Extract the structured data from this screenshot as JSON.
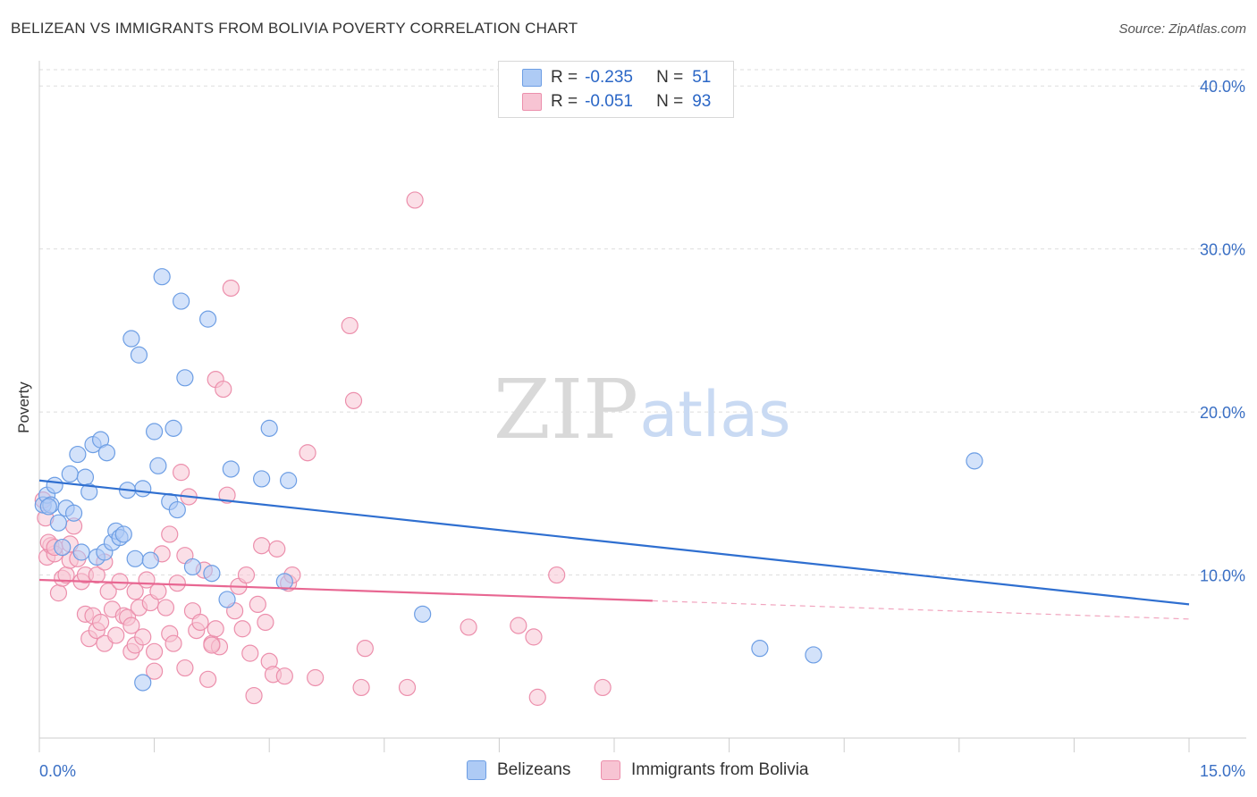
{
  "title": "BELIZEAN VS IMMIGRANTS FROM BOLIVIA POVERTY CORRELATION CHART",
  "source": "Source: ZipAtlas.com",
  "watermark": {
    "zip": "ZIP",
    "atlas": "atlas"
  },
  "legend": {
    "r_label": "R =",
    "n_label": "N =",
    "series": [
      {
        "r": "-0.235",
        "n": "51"
      },
      {
        "r": "-0.051",
        "n": "93"
      }
    ]
  },
  "colors": {
    "blue_fill": "#aecbf5",
    "blue_stroke": "#6d9ee4",
    "blue_line": "#2f6fd0",
    "pink_fill": "#f7c4d3",
    "pink_stroke": "#ec8fac",
    "pink_line": "#e86792",
    "axis_text": "#3a6fc4"
  },
  "chart_data": {
    "type": "scatter",
    "title": "BELIZEAN VS IMMIGRANTS FROM BOLIVIA POVERTY CORRELATION CHART",
    "xlabel": "",
    "ylabel": "Poverty",
    "xlim": [
      0,
      15
    ],
    "ylim": [
      0,
      41
    ],
    "x_tick_labels": [
      "0.0%",
      "15.0%"
    ],
    "y_ticks": [
      10,
      20,
      30,
      40
    ],
    "y_tick_labels": [
      "10.0%",
      "20.0%",
      "30.0%",
      "40.0%"
    ],
    "series": [
      {
        "name": "Belizeans",
        "color": "blue",
        "r": -0.235,
        "n": 51,
        "trend": {
          "x": [
            0,
            15
          ],
          "y": [
            15.8,
            8.2
          ],
          "solid_until": 15
        },
        "points": [
          [
            0.05,
            14.3
          ],
          [
            0.1,
            14.9
          ],
          [
            0.15,
            14.3
          ],
          [
            0.2,
            15.5
          ],
          [
            0.25,
            13.2
          ],
          [
            0.3,
            11.7
          ],
          [
            0.35,
            14.1
          ],
          [
            0.4,
            16.2
          ],
          [
            0.45,
            13.8
          ],
          [
            0.5,
            17.4
          ],
          [
            0.55,
            11.4
          ],
          [
            0.6,
            16.0
          ],
          [
            0.65,
            15.1
          ],
          [
            0.7,
            18.0
          ],
          [
            0.75,
            11.1
          ],
          [
            0.8,
            18.3
          ],
          [
            0.85,
            11.4
          ],
          [
            0.88,
            17.5
          ],
          [
            0.95,
            12.0
          ],
          [
            1.0,
            12.7
          ],
          [
            1.05,
            12.3
          ],
          [
            1.1,
            12.5
          ],
          [
            1.2,
            24.5
          ],
          [
            1.25,
            11.0
          ],
          [
            1.3,
            23.5
          ],
          [
            1.35,
            15.3
          ],
          [
            1.45,
            10.9
          ],
          [
            1.5,
            18.8
          ],
          [
            1.55,
            16.7
          ],
          [
            1.6,
            28.3
          ],
          [
            1.7,
            14.5
          ],
          [
            1.75,
            19.0
          ],
          [
            1.8,
            14.0
          ],
          [
            1.85,
            26.8
          ],
          [
            1.9,
            22.1
          ],
          [
            2.0,
            10.5
          ],
          [
            2.2,
            25.7
          ],
          [
            2.25,
            10.1
          ],
          [
            2.45,
            8.5
          ],
          [
            2.5,
            16.5
          ],
          [
            2.9,
            15.9
          ],
          [
            3.0,
            19.0
          ],
          [
            3.2,
            9.6
          ],
          [
            3.25,
            15.8
          ],
          [
            1.35,
            3.4
          ],
          [
            5.0,
            7.6
          ],
          [
            12.2,
            17.0
          ],
          [
            9.4,
            5.5
          ],
          [
            10.1,
            5.1
          ],
          [
            0.12,
            14.2
          ],
          [
            1.15,
            15.2
          ]
        ]
      },
      {
        "name": "Immigrants from Bolivia",
        "color": "pink",
        "r": -0.051,
        "n": 93,
        "trend": {
          "x": [
            0,
            15
          ],
          "y": [
            9.7,
            7.3
          ],
          "solid_until": 8.0
        },
        "points": [
          [
            0.05,
            14.6
          ],
          [
            0.08,
            13.5
          ],
          [
            0.1,
            11.1
          ],
          [
            0.15,
            11.8
          ],
          [
            0.2,
            11.3
          ],
          [
            0.25,
            8.9
          ],
          [
            0.3,
            9.8
          ],
          [
            0.35,
            10.0
          ],
          [
            0.4,
            10.9
          ],
          [
            0.45,
            13.0
          ],
          [
            0.5,
            11.0
          ],
          [
            0.55,
            9.6
          ],
          [
            0.6,
            10.0
          ],
          [
            0.6,
            7.6
          ],
          [
            0.65,
            6.1
          ],
          [
            0.7,
            7.5
          ],
          [
            0.75,
            10.0
          ],
          [
            0.75,
            6.6
          ],
          [
            0.8,
            7.1
          ],
          [
            0.85,
            10.8
          ],
          [
            0.85,
            5.8
          ],
          [
            0.9,
            9.0
          ],
          [
            0.95,
            7.9
          ],
          [
            1.0,
            6.3
          ],
          [
            1.05,
            9.6
          ],
          [
            1.1,
            7.5
          ],
          [
            1.15,
            7.4
          ],
          [
            1.2,
            6.9
          ],
          [
            1.2,
            5.3
          ],
          [
            1.25,
            5.7
          ],
          [
            1.3,
            8.0
          ],
          [
            1.35,
            6.2
          ],
          [
            1.4,
            9.7
          ],
          [
            1.45,
            8.3
          ],
          [
            1.5,
            5.3
          ],
          [
            1.5,
            4.1
          ],
          [
            1.55,
            9.0
          ],
          [
            1.6,
            11.3
          ],
          [
            1.65,
            8.0
          ],
          [
            1.7,
            6.4
          ],
          [
            1.7,
            12.5
          ],
          [
            1.75,
            5.8
          ],
          [
            1.8,
            9.5
          ],
          [
            1.85,
            16.3
          ],
          [
            1.9,
            4.3
          ],
          [
            1.9,
            11.2
          ],
          [
            1.95,
            14.8
          ],
          [
            2.0,
            7.8
          ],
          [
            2.05,
            6.6
          ],
          [
            2.1,
            7.1
          ],
          [
            2.15,
            10.3
          ],
          [
            2.2,
            3.6
          ],
          [
            2.25,
            5.8
          ],
          [
            2.3,
            6.7
          ],
          [
            2.3,
            22.0
          ],
          [
            2.35,
            5.6
          ],
          [
            2.4,
            21.4
          ],
          [
            2.45,
            14.9
          ],
          [
            2.5,
            27.6
          ],
          [
            2.55,
            7.8
          ],
          [
            2.6,
            9.3
          ],
          [
            2.65,
            6.7
          ],
          [
            2.7,
            10.0
          ],
          [
            2.75,
            5.2
          ],
          [
            2.8,
            2.6
          ],
          [
            2.85,
            8.2
          ],
          [
            2.9,
            11.8
          ],
          [
            2.95,
            7.1
          ],
          [
            3.0,
            4.7
          ],
          [
            3.05,
            3.9
          ],
          [
            3.1,
            11.6
          ],
          [
            3.2,
            3.8
          ],
          [
            3.25,
            9.5
          ],
          [
            3.3,
            10.0
          ],
          [
            3.5,
            17.5
          ],
          [
            3.6,
            3.7
          ],
          [
            4.05,
            25.3
          ],
          [
            4.1,
            20.7
          ],
          [
            4.2,
            3.1
          ],
          [
            4.25,
            5.5
          ],
          [
            4.8,
            3.1
          ],
          [
            4.9,
            33.0
          ],
          [
            5.6,
            6.8
          ],
          [
            6.25,
            6.9
          ],
          [
            6.45,
            6.2
          ],
          [
            6.5,
            2.5
          ],
          [
            6.75,
            10.0
          ],
          [
            7.35,
            3.1
          ],
          [
            0.12,
            12.0
          ],
          [
            0.2,
            11.7
          ],
          [
            1.25,
            9.0
          ],
          [
            0.4,
            11.9
          ],
          [
            2.25,
            5.7
          ]
        ]
      }
    ]
  },
  "bottom_legend": [
    "Belizeans",
    "Immigrants from Bolivia"
  ]
}
